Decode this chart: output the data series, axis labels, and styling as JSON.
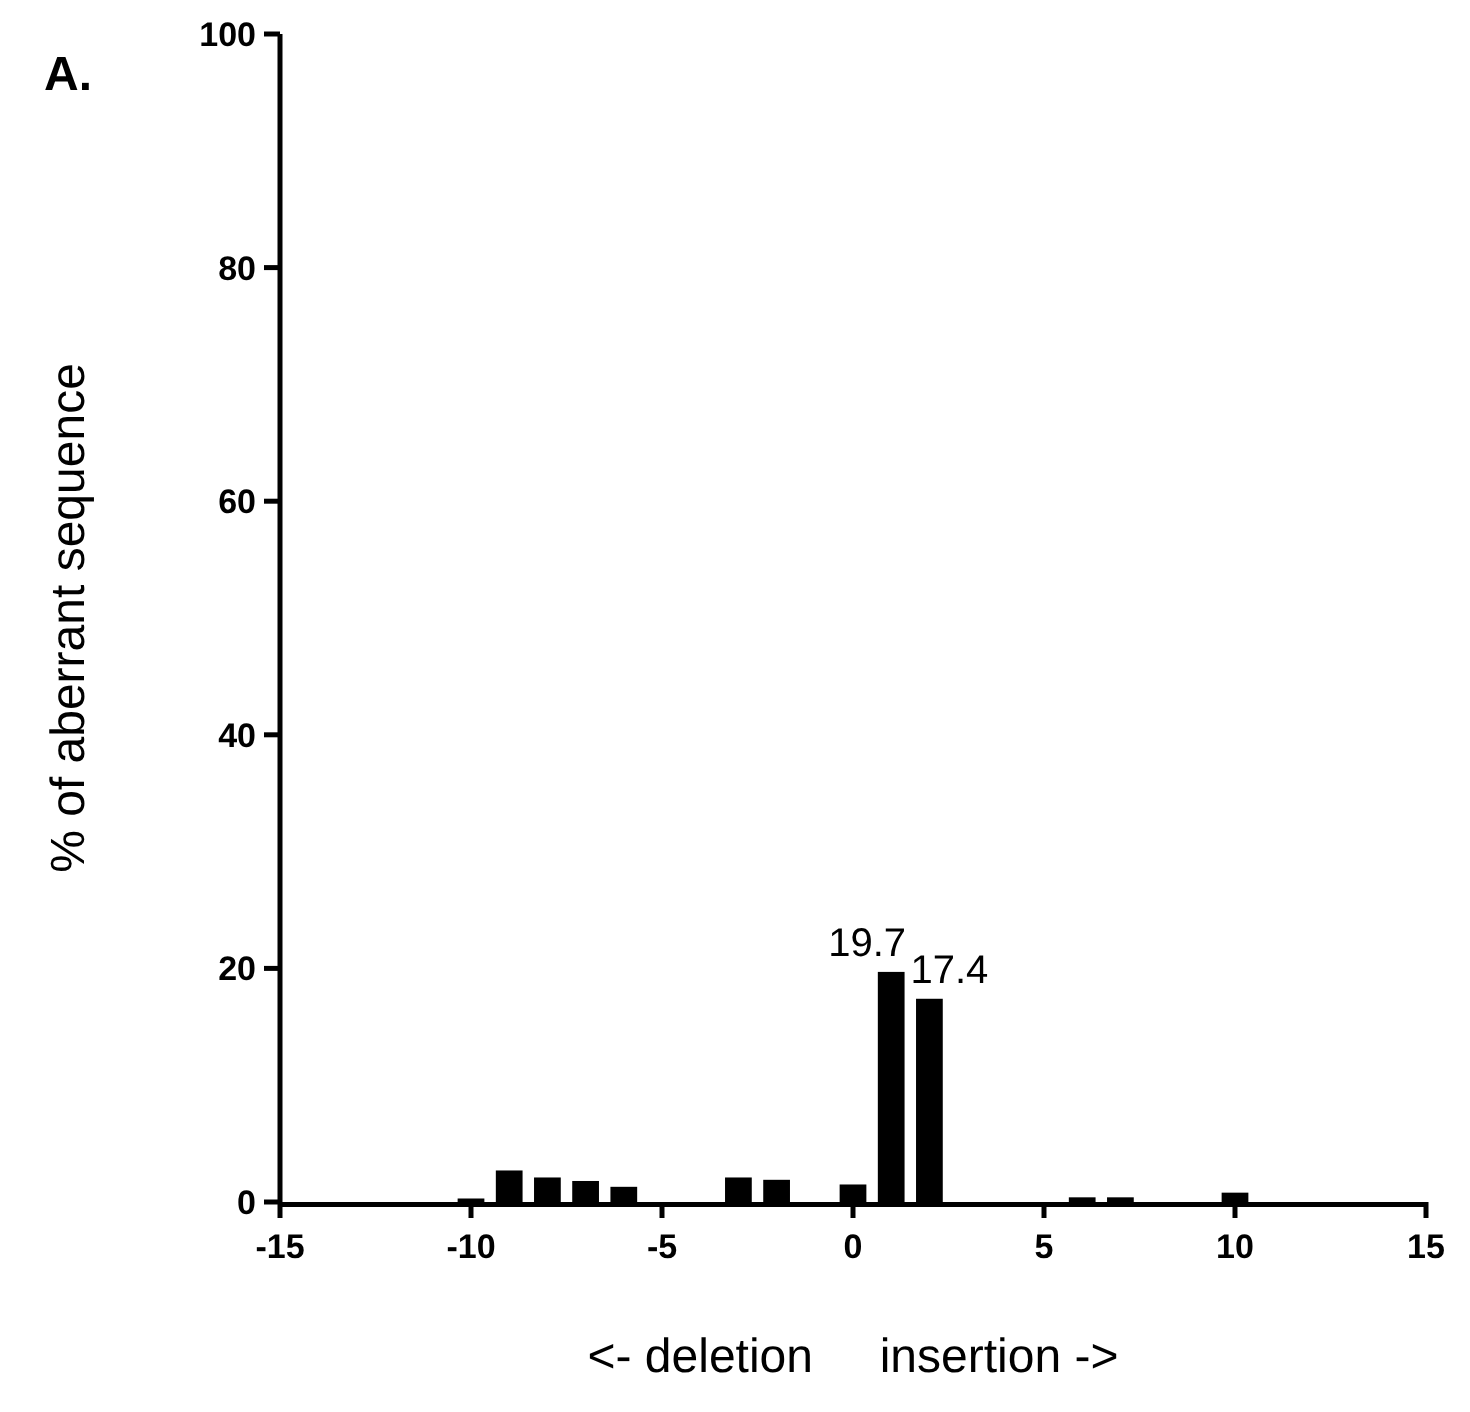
{
  "chart_data": {
    "type": "bar",
    "xlabel": "<- deletion     insertion ->",
    "ylabel": "% of aberrant sequence",
    "annotations": [
      "A."
    ],
    "x": [
      -10,
      -9,
      -8,
      -7,
      -6,
      -3,
      -2,
      0,
      1,
      2,
      6,
      7,
      10
    ],
    "values": [
      0.3,
      2.7,
      2.1,
      1.8,
      1.3,
      2.1,
      1.9,
      1.5,
      19.7,
      17.4,
      0.4,
      0.4,
      0.8
    ],
    "value_labels": [
      null,
      null,
      null,
      null,
      null,
      null,
      null,
      null,
      "19.7",
      "17.4",
      null,
      null,
      null
    ],
    "color": "#000000",
    "xlim": [
      -15,
      15
    ],
    "xticks": [
      -15,
      -10,
      -5,
      0,
      5,
      10,
      15
    ],
    "ylim": [
      0,
      100
    ],
    "yticks": [
      0,
      20,
      40,
      60,
      80,
      100
    ],
    "grid": false
  }
}
